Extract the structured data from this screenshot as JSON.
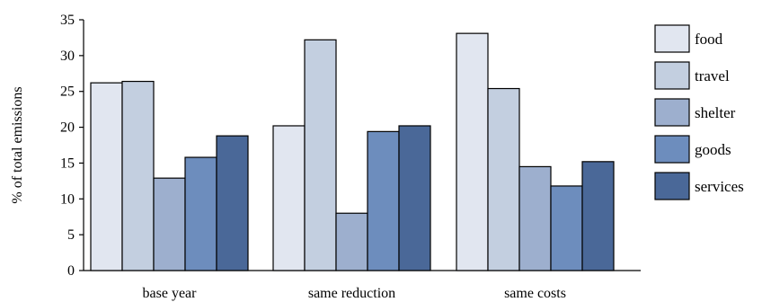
{
  "chart_data": {
    "type": "bar",
    "title": "",
    "xlabel": "",
    "ylabel": "% of total emissions",
    "ylim": [
      0,
      35
    ],
    "yticks": [
      0,
      5,
      10,
      15,
      20,
      25,
      30,
      35
    ],
    "grid": false,
    "legend_position": "right",
    "categories": [
      "base year",
      "same reduction",
      "same costs"
    ],
    "series": [
      {
        "name": "food",
        "color": "#e1e6f0",
        "values": [
          26.2,
          20.2,
          33.1
        ]
      },
      {
        "name": "travel",
        "color": "#c3cfe0",
        "values": [
          26.4,
          32.2,
          25.4
        ]
      },
      {
        "name": "shelter",
        "color": "#9dafce",
        "values": [
          12.9,
          8.0,
          14.5
        ]
      },
      {
        "name": "goods",
        "color": "#6d8dbd",
        "values": [
          15.8,
          19.4,
          11.8
        ]
      },
      {
        "name": "services",
        "color": "#4a6898",
        "values": [
          18.8,
          20.2,
          15.2
        ]
      }
    ]
  }
}
